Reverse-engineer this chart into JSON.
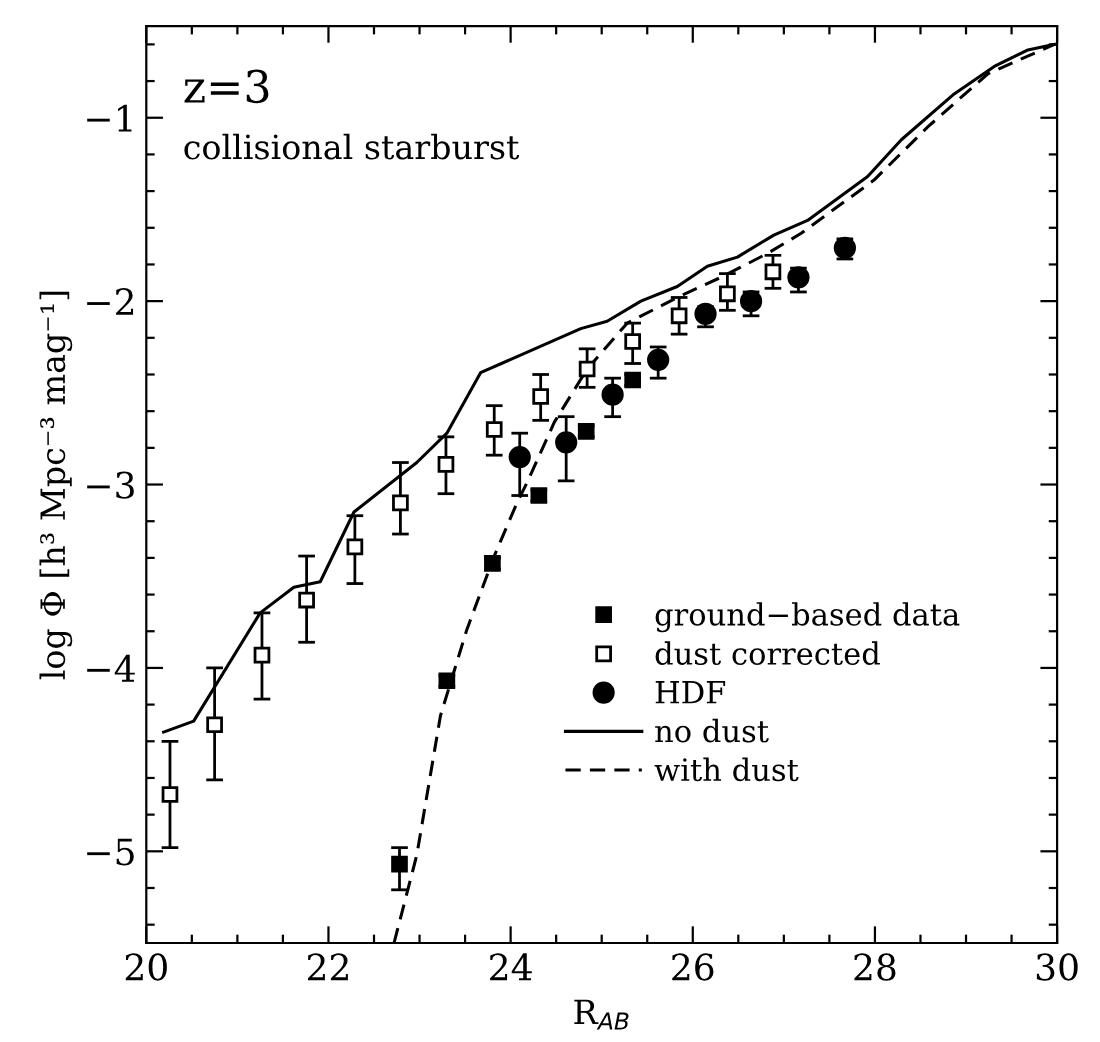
{
  "chart_data": {
    "type": "scatter",
    "xlabel": "R$_{AB}$",
    "ylabel": "log Φ [h³ Mpc⁻³ mag⁻¹]",
    "annotations": [
      "z=3",
      "collisional starburst"
    ],
    "xlim": [
      20,
      30
    ],
    "ylim": [
      -5.5,
      -0.5
    ],
    "xticks": [
      20,
      {
        "value": 20.5,
        "label": null
      },
      {
        "value": 21,
        "label": null
      },
      {
        "value": 21.5,
        "label": null
      },
      22,
      {
        "value": 22.5,
        "label": null
      },
      {
        "value": 23,
        "label": null
      },
      {
        "value": 23.5,
        "label": null
      },
      24,
      {
        "value": 24.5,
        "label": null
      },
      {
        "value": 25,
        "label": null
      },
      {
        "value": 25.5,
        "label": null
      },
      26,
      {
        "value": 26.5,
        "label": null
      },
      {
        "value": 27,
        "label": null
      },
      {
        "value": 27.5,
        "label": null
      },
      28,
      {
        "value": 28.5,
        "label": null
      },
      {
        "value": 29,
        "label": null
      },
      {
        "value": 29.5,
        "label": null
      },
      30
    ],
    "yticks": [
      {
        "value": -5.4,
        "label": null
      },
      {
        "value": -5.2,
        "label": null
      },
      {
        "value": -5,
        "label": "−5"
      },
      {
        "value": -4.8,
        "label": null
      },
      {
        "value": -4.6,
        "label": null
      },
      {
        "value": -4.4,
        "label": null
      },
      {
        "value": -4.2,
        "label": null
      },
      {
        "value": -4,
        "label": "−4"
      },
      {
        "value": -3.8,
        "label": null
      },
      {
        "value": -3.6,
        "label": null
      },
      {
        "value": -3.4,
        "label": null
      },
      {
        "value": -3.2,
        "label": null
      },
      {
        "value": -3,
        "label": "−3"
      },
      {
        "value": -2.8,
        "label": null
      },
      {
        "value": -2.6,
        "label": null
      },
      {
        "value": -2.4,
        "label": null
      },
      {
        "value": -2.2,
        "label": null
      },
      {
        "value": -2,
        "label": "−2"
      },
      {
        "value": -1.8,
        "label": null
      },
      {
        "value": -1.6,
        "label": null
      },
      {
        "value": -1.4,
        "label": null
      },
      {
        "value": -1.2,
        "label": null
      },
      {
        "value": -1,
        "label": "−1"
      },
      {
        "value": -0.8,
        "label": null
      },
      {
        "value": -0.6,
        "label": null
      }
    ],
    "grid": false,
    "legend": "bottom right",
    "series": [
      {
        "name": "ground−based data",
        "marker": "square",
        "color": "#000000",
        "x": [
          22.78,
          23.3,
          23.8,
          24.31,
          24.83,
          25.34
        ],
        "values": [
          -5.07,
          -4.07,
          -3.43,
          -3.06,
          -2.71,
          -2.43
        ],
        "errors": [
          [
            -5.21,
            -4.98
          ],
          0.03,
          0.03,
          0.03,
          0.03,
          0.03
        ]
      },
      {
        "name": "dust corrected",
        "marker": "square",
        "color": "#ffffff",
        "x": [
          20.26,
          20.75,
          21.27,
          21.76,
          22.29,
          22.79,
          23.29,
          23.82,
          24.33,
          24.84,
          25.34,
          25.85,
          26.38,
          26.88
        ],
        "values": [
          -4.69,
          -4.31,
          -3.93,
          -3.63,
          -3.34,
          -3.1,
          -2.89,
          -2.7,
          -2.52,
          -2.37,
          -2.22,
          -2.08,
          -1.96,
          -1.84
        ],
        "errors": [
          [
            -4.98,
            -4.4
          ],
          [
            -4.61,
            -4.0
          ],
          [
            -4.17,
            -3.7
          ],
          [
            -3.86,
            -3.39
          ],
          [
            -3.54,
            -3.17
          ],
          [
            -3.27,
            -2.88
          ],
          [
            -3.05,
            -2.74
          ],
          [
            -2.84,
            -2.57
          ],
          [
            -2.65,
            -2.4
          ],
          [
            -2.47,
            -2.26
          ],
          [
            -2.34,
            -2.12
          ],
          [
            -2.18,
            -1.98
          ],
          [
            -2.05,
            -1.85
          ],
          [
            -1.93,
            -1.75
          ]
        ]
      },
      {
        "name": "HDF",
        "marker": "circle",
        "color": "#000000",
        "x": [
          24.1,
          24.61,
          25.12,
          25.62,
          26.14,
          26.64,
          27.16,
          27.67
        ],
        "values": [
          -2.85,
          -2.77,
          -2.51,
          -2.32,
          -2.07,
          -2.0,
          -1.87,
          -1.71
        ],
        "errors": [
          [
            -3.06,
            -2.72
          ],
          [
            -2.98,
            -2.63
          ],
          [
            -2.63,
            -2.42
          ],
          [
            -2.42,
            -2.25
          ],
          [
            -2.14,
            -2.03
          ],
          [
            -2.08,
            -1.95
          ],
          [
            -1.95,
            -1.82
          ],
          [
            -1.77,
            -1.66
          ]
        ]
      },
      {
        "name": "no dust",
        "type": "line",
        "line_style": "solid",
        "marker": "none",
        "color": "#000000",
        "x": [
          20.19,
          20.52,
          21.25,
          21.62,
          21.91,
          22.28,
          22.97,
          23.3,
          23.67,
          24.77,
          25.06,
          25.43,
          25.83,
          26.16,
          26.49,
          26.89,
          27.26,
          27.92,
          28.29,
          28.87,
          29.31,
          29.68,
          29.97
        ],
        "values": [
          -4.35,
          -4.29,
          -3.7,
          -3.56,
          -3.53,
          -3.15,
          -2.88,
          -2.72,
          -2.39,
          -2.15,
          -2.11,
          -2.0,
          -1.92,
          -1.81,
          -1.76,
          -1.64,
          -1.56,
          -1.32,
          -1.12,
          -0.87,
          -0.72,
          -0.63,
          -0.6
        ]
      },
      {
        "name": "with dust",
        "type": "line",
        "line_style": "dashed",
        "marker": "none",
        "color": "#000000",
        "x": [
          22.72,
          22.97,
          23.23,
          23.52,
          23.82,
          24.07,
          24.18,
          24.48,
          24.84,
          25.28,
          25.87,
          26.31,
          26.82,
          27.19,
          27.99,
          28.58,
          29.24,
          29.97
        ],
        "values": [
          -5.5,
          -5.02,
          -4.26,
          -3.79,
          -3.39,
          -3.1,
          -2.99,
          -2.66,
          -2.37,
          -2.12,
          -1.97,
          -1.87,
          -1.74,
          -1.63,
          -1.34,
          -1.05,
          -0.76,
          -0.6
        ]
      }
    ]
  }
}
